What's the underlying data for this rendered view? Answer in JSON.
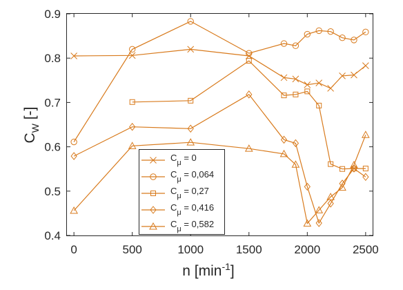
{
  "chart_data": {
    "type": "line",
    "xlabel": {
      "base": "n [min",
      "sup": "-1",
      "end": "]"
    },
    "ylabel": {
      "base": "C",
      "sub": "W",
      "end": " [-]"
    },
    "xlim": [
      -60,
      2560
    ],
    "ylim": [
      0.4,
      0.9
    ],
    "xticks": [
      "0",
      "500",
      "1000",
      "1500",
      "2000",
      "2500"
    ],
    "yticks": [
      "0.4",
      "0.5",
      "0.6",
      "0.7",
      "0.8",
      "0.9"
    ],
    "grid": false,
    "legend_position": "lower-center",
    "line_color": "#D87A1C",
    "series": [
      {
        "name": "C_μ = 0",
        "legend": {
          "base": "C",
          "sub": "μ",
          "rest": " = 0"
        },
        "marker": "x",
        "x": [
          0,
          500,
          1000,
          1500,
          1800,
          1900,
          2000,
          2100,
          2200,
          2300,
          2400,
          2500
        ],
        "y": [
          0.805,
          0.806,
          0.82,
          0.805,
          0.756,
          0.753,
          0.74,
          0.744,
          0.732,
          0.76,
          0.762,
          0.783
        ]
      },
      {
        "name": "C_μ = 0,064",
        "legend": {
          "base": "C",
          "sub": "μ",
          "rest": " = 0,064"
        },
        "marker": "circle",
        "x": [
          0,
          500,
          1000,
          1500,
          1800,
          1900,
          2000,
          2100,
          2200,
          2300,
          2400,
          2500
        ],
        "y": [
          0.611,
          0.82,
          0.883,
          0.811,
          0.833,
          0.828,
          0.854,
          0.862,
          0.86,
          0.846,
          0.841,
          0.859
        ]
      },
      {
        "name": "C_μ = 0,27",
        "legend": {
          "base": "C",
          "sub": "μ",
          "rest": " = 0,27"
        },
        "marker": "square",
        "x": [
          500,
          1000,
          1500,
          1800,
          1900,
          2000,
          2100,
          2200,
          2300,
          2400,
          2500
        ],
        "y": [
          0.701,
          0.704,
          0.794,
          0.716,
          0.718,
          0.725,
          0.693,
          0.561,
          0.55,
          0.551,
          0.551
        ]
      },
      {
        "name": "C_μ = 0,416",
        "legend": {
          "base": "C",
          "sub": "μ",
          "rest": " = 0,416"
        },
        "marker": "diamond",
        "x": [
          0,
          500,
          1000,
          1500,
          1800,
          1900,
          2000,
          2100,
          2200,
          2300,
          2400,
          2500
        ],
        "y": [
          0.579,
          0.645,
          0.641,
          0.718,
          0.616,
          0.608,
          0.51,
          0.428,
          0.472,
          0.517,
          0.551,
          0.532
        ]
      },
      {
        "name": "C_μ = 0,582",
        "legend": {
          "base": "C",
          "sub": "μ",
          "rest": " = 0,582"
        },
        "marker": "triangle",
        "x": [
          0,
          500,
          1000,
          1500,
          1800,
          1900,
          2000,
          2100,
          2200,
          2300,
          2400,
          2500
        ],
        "y": [
          0.456,
          0.602,
          0.61,
          0.596,
          0.584,
          0.56,
          0.427,
          0.457,
          0.487,
          0.508,
          0.559,
          0.627
        ]
      }
    ]
  }
}
